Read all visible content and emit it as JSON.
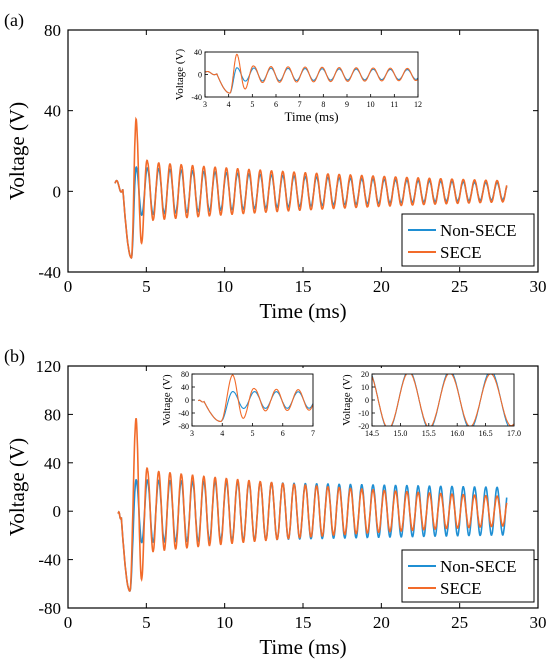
{
  "colors": {
    "non_secce": "#1f8fd3",
    "secce": "#f26b2a",
    "axis": "#000000"
  },
  "chart_data": [
    {
      "type": "line",
      "panel_label": "(a)",
      "xlabel": "Time (ms)",
      "ylabel": "Voltage (V)",
      "xlim": [
        0,
        30
      ],
      "ylim": [
        -40,
        80
      ],
      "xticks": [
        0,
        5,
        10,
        15,
        20,
        25,
        30
      ],
      "yticks": [
        -40,
        0,
        40,
        80
      ],
      "xtick_labels": [
        "0",
        "5",
        "10",
        "15",
        "20",
        "25",
        "30"
      ],
      "ytick_labels": [
        "-40",
        "0",
        "40",
        "80"
      ],
      "legend": {
        "placement": "bottom-right",
        "entries": [
          "Non-SECE",
          "SECE"
        ]
      },
      "series": [
        {
          "name": "Non-SECE",
          "color": "#1f8fd3",
          "model": {
            "t0": 3.0,
            "t_end": 28.0,
            "period": 0.72,
            "peak_time": 4.35,
            "initial_peak": 12,
            "decay": 0.045,
            "pre_offset": 4,
            "dip_min": -33,
            "dip_time": 4.05
          }
        },
        {
          "name": "SECE",
          "color": "#f26b2a",
          "model": {
            "t0": 3.0,
            "t_end": 28.0,
            "period": 0.72,
            "peak_time": 4.35,
            "initial_peak": 36,
            "decay": 0.045,
            "pre_offset": 4,
            "dip_min": -33,
            "dip_time": 4.05,
            "secondary_peak": 15
          }
        }
      ],
      "insets": [
        {
          "xlabel": "Time (ms)",
          "ylabel": "Voltage (V)",
          "xlim": [
            3,
            12
          ],
          "ylim": [
            -40,
            40
          ],
          "xticks": [
            3,
            4,
            5,
            6,
            7,
            8,
            9,
            10,
            11,
            12
          ],
          "yticks": [
            -40,
            0,
            40
          ],
          "xtick_labels": [
            "3",
            "4",
            "5",
            "6",
            "7",
            "8",
            "9",
            "10",
            "11",
            "12"
          ],
          "ytick_labels": [
            "-40",
            "0",
            "40"
          ]
        }
      ]
    },
    {
      "type": "line",
      "panel_label": "(b)",
      "xlabel": "Time (ms)",
      "ylabel": "Voltage (V)",
      "xlim": [
        0,
        30
      ],
      "ylim": [
        -80,
        120
      ],
      "xticks": [
        0,
        5,
        10,
        15,
        20,
        25,
        30
      ],
      "yticks": [
        -80,
        -40,
        0,
        40,
        80,
        120
      ],
      "xtick_labels": [
        "0",
        "5",
        "10",
        "15",
        "20",
        "25",
        "30"
      ],
      "ytick_labels": [
        "-80",
        "-40",
        "0",
        "40",
        "80",
        "120"
      ],
      "legend": {
        "placement": "bottom-right",
        "entries": [
          "Non-SECE",
          "SECE"
        ]
      },
      "series": [
        {
          "name": "Non-SECE",
          "color": "#1f8fd3",
          "model": {
            "t0": 3.2,
            "t_end": 28.0,
            "period": 0.72,
            "peak_time": 4.35,
            "initial_peak": 26,
            "decay": 0.012,
            "pre_offset": -2,
            "dip_min": -66,
            "dip_time": 3.95
          }
        },
        {
          "name": "SECE",
          "color": "#f26b2a",
          "model": {
            "t0": 3.2,
            "t_end": 28.0,
            "period": 0.72,
            "peak_time": 4.35,
            "initial_peak": 77,
            "decay": 0.045,
            "pre_offset": -2,
            "dip_min": -66,
            "dip_time": 3.95,
            "secondary_peak": 35
          }
        }
      ],
      "insets": [
        {
          "xlabel": "",
          "ylabel": "Voltage (V)",
          "xlim": [
            3,
            7
          ],
          "ylim": [
            -80,
            80
          ],
          "xticks": [
            3,
            4,
            5,
            6,
            7
          ],
          "yticks": [
            -80,
            -40,
            0,
            40,
            80
          ],
          "xtick_labels": [
            "3",
            "4",
            "5",
            "6",
            "7"
          ],
          "ytick_labels": [
            "-80",
            "-40",
            "0",
            "40",
            "80"
          ]
        },
        {
          "xlabel": "",
          "ylabel": "Voltage (V)",
          "xlim": [
            14.5,
            17.0
          ],
          "ylim": [
            -20,
            20
          ],
          "xticks": [
            14.5,
            15.0,
            15.5,
            16.0,
            16.5,
            17.0
          ],
          "yticks": [
            -20,
            -10,
            0,
            10,
            20
          ],
          "xtick_labels": [
            "14.5",
            "15.0",
            "15.5",
            "16.0",
            "16.5",
            "17.0"
          ],
          "ytick_labels": [
            "-20",
            "-10",
            "0",
            "10",
            "20"
          ]
        }
      ]
    }
  ]
}
